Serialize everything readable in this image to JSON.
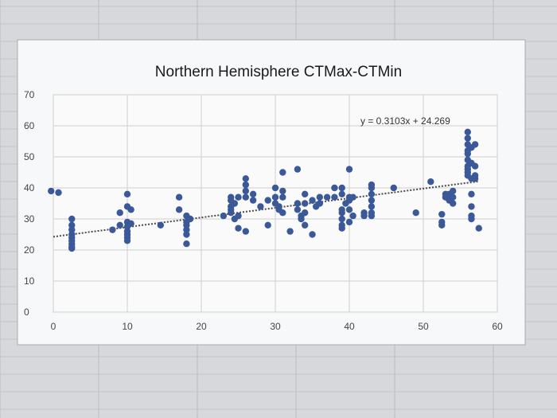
{
  "chart_data": {
    "type": "scatter",
    "title": "Northern Hemisphere CTMax-CTMin",
    "xlabel": "",
    "ylabel": "",
    "xlim": [
      0,
      60
    ],
    "ylim": [
      0,
      70
    ],
    "x_ticks": [
      0,
      10,
      20,
      30,
      40,
      50,
      60
    ],
    "y_ticks": [
      0,
      10,
      20,
      30,
      40,
      50,
      60,
      70
    ],
    "grid": true,
    "legend": "none",
    "marker_color": "#3b5998",
    "trendline": {
      "slope": 0.3103,
      "intercept": 24.269,
      "equation_label": "y = 0.3103x + 24.269",
      "style": "dotted"
    },
    "series": [
      {
        "points": [
          [
            -0.3,
            39
          ],
          [
            0.7,
            38.5
          ],
          [
            2.5,
            30
          ],
          [
            2.5,
            28
          ],
          [
            2.5,
            26.5
          ],
          [
            2.5,
            25
          ],
          [
            2.5,
            24
          ],
          [
            2.5,
            23
          ],
          [
            2.5,
            22
          ],
          [
            2.5,
            21
          ],
          [
            2.5,
            20.5
          ],
          [
            8,
            26.5
          ],
          [
            9,
            32
          ],
          [
            9,
            28
          ],
          [
            10,
            38
          ],
          [
            10,
            34
          ],
          [
            10,
            29
          ],
          [
            10,
            27.5
          ],
          [
            10,
            26
          ],
          [
            10,
            25
          ],
          [
            10,
            24
          ],
          [
            10,
            23
          ],
          [
            10.5,
            33
          ],
          [
            10.5,
            28.5
          ],
          [
            14.5,
            28
          ],
          [
            17,
            37
          ],
          [
            17,
            33
          ],
          [
            18,
            31
          ],
          [
            18,
            29
          ],
          [
            18,
            28
          ],
          [
            18,
            26.5
          ],
          [
            18,
            25
          ],
          [
            18,
            22
          ],
          [
            18.5,
            30
          ],
          [
            23,
            31
          ],
          [
            24,
            37
          ],
          [
            24,
            36
          ],
          [
            24,
            34
          ],
          [
            24,
            33
          ],
          [
            24,
            32
          ],
          [
            24.5,
            35
          ],
          [
            24.5,
            30
          ],
          [
            25,
            37
          ],
          [
            25,
            31
          ],
          [
            25,
            27
          ],
          [
            26,
            43
          ],
          [
            26,
            41
          ],
          [
            26,
            39
          ],
          [
            26,
            37
          ],
          [
            26,
            26
          ],
          [
            27,
            38
          ],
          [
            27,
            36
          ],
          [
            28,
            34
          ],
          [
            29,
            36
          ],
          [
            29,
            28
          ],
          [
            30,
            40
          ],
          [
            30,
            37
          ],
          [
            30,
            35
          ],
          [
            30.5,
            34
          ],
          [
            30.5,
            33
          ],
          [
            31,
            45
          ],
          [
            31,
            39
          ],
          [
            31,
            37
          ],
          [
            31,
            32
          ],
          [
            32,
            26
          ],
          [
            33,
            46
          ],
          [
            33,
            35
          ],
          [
            33,
            33
          ],
          [
            33.5,
            30
          ],
          [
            33.5,
            31
          ],
          [
            34,
            38
          ],
          [
            34,
            35
          ],
          [
            34,
            32
          ],
          [
            34,
            28
          ],
          [
            35,
            36
          ],
          [
            35,
            25
          ],
          [
            35.5,
            34
          ],
          [
            36,
            37
          ],
          [
            36,
            35
          ],
          [
            37,
            37
          ],
          [
            38,
            40
          ],
          [
            38,
            37
          ],
          [
            39,
            40
          ],
          [
            39,
            38
          ],
          [
            39,
            33
          ],
          [
            39,
            32
          ],
          [
            39,
            30
          ],
          [
            39,
            28
          ],
          [
            39,
            27
          ],
          [
            39.5,
            35
          ],
          [
            40,
            46
          ],
          [
            40,
            37
          ],
          [
            40,
            36
          ],
          [
            40,
            33
          ],
          [
            40,
            29
          ],
          [
            40.5,
            37
          ],
          [
            40.5,
            31
          ],
          [
            42,
            32
          ],
          [
            42,
            31
          ],
          [
            43,
            41
          ],
          [
            43,
            40
          ],
          [
            43,
            38
          ],
          [
            43,
            36
          ],
          [
            43,
            34
          ],
          [
            43,
            32
          ],
          [
            43,
            31
          ],
          [
            46,
            40
          ],
          [
            49,
            32
          ],
          [
            51,
            42
          ],
          [
            52.5,
            31.5
          ],
          [
            52.5,
            29
          ],
          [
            52.5,
            28
          ],
          [
            53,
            38
          ],
          [
            53,
            37
          ],
          [
            53.5,
            38
          ],
          [
            53.5,
            36
          ],
          [
            54,
            39
          ],
          [
            54,
            37
          ],
          [
            54,
            35
          ],
          [
            56,
            58
          ],
          [
            56,
            56
          ],
          [
            56,
            54
          ],
          [
            56,
            52
          ],
          [
            56,
            51
          ],
          [
            56,
            49
          ],
          [
            56,
            47
          ],
          [
            56,
            46
          ],
          [
            56,
            45
          ],
          [
            56,
            44
          ],
          [
            56.5,
            53
          ],
          [
            56.5,
            48
          ],
          [
            56.5,
            43
          ],
          [
            57,
            54
          ],
          [
            57,
            47
          ],
          [
            57,
            44
          ],
          [
            57,
            43
          ],
          [
            56.5,
            38
          ],
          [
            56.5,
            34
          ],
          [
            56.5,
            31
          ],
          [
            56.5,
            30
          ],
          [
            57.5,
            27
          ]
        ]
      }
    ]
  }
}
